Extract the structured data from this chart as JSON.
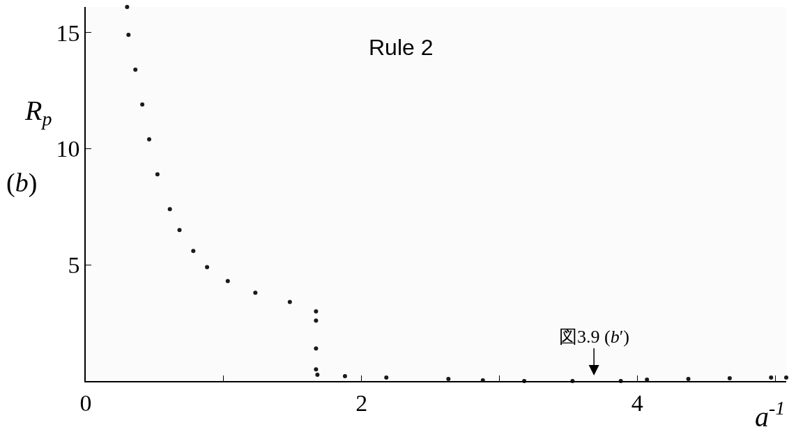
{
  "chart_data": {
    "type": "scatter",
    "title": "Rule 2",
    "xlabel": "a$^{-1}$",
    "ylabel": "R$_{p}$",
    "annotations": [
      "(b)",
      "図3.9 (b′)"
    ],
    "x": [
      0.3,
      0.31,
      0.36,
      0.41,
      0.46,
      0.52,
      0.61,
      0.68,
      0.78,
      0.88,
      1.03,
      1.23,
      1.48,
      1.67,
      1.67,
      1.67,
      1.67,
      1.68,
      1.88,
      2.18,
      2.63,
      2.88,
      3.18,
      3.53,
      3.88,
      4.07,
      4.37,
      4.67,
      4.97,
      5.08
    ],
    "series": [
      {
        "color": "#1a1a1a",
        "values": [
          16.1,
          14.9,
          13.4,
          11.9,
          10.4,
          8.9,
          7.4,
          6.5,
          5.6,
          4.9,
          4.3,
          3.8,
          3.4,
          3.0,
          2.6,
          1.4,
          0.5,
          0.27,
          0.21,
          0.15,
          0.09,
          0.03,
          0,
          0,
          0,
          0.06,
          0.09,
          0.12,
          0.15,
          0.15
        ]
      }
    ],
    "xlim": [
      0,
      5.08
    ],
    "ylim": [
      0,
      16.1
    ],
    "xticks": [
      0,
      {
        "value": 1,
        "label": null
      },
      2,
      {
        "value": 3,
        "label": null
      },
      4,
      {
        "value": 5,
        "label": null
      }
    ],
    "yticks": [
      5,
      10,
      15
    ]
  }
}
